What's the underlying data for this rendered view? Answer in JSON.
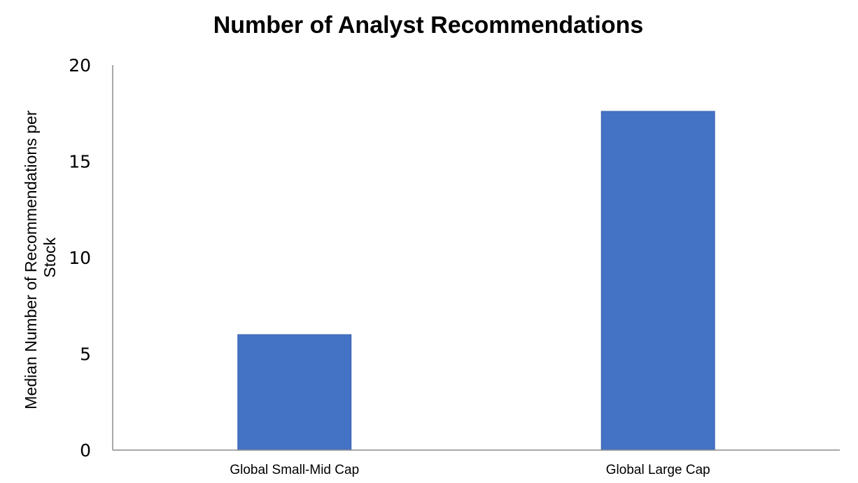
{
  "chart_data": {
    "type": "bar",
    "title": "Number of Analyst Recommendations",
    "xlabel": "",
    "ylabel_lines": [
      "Median Number of Recommendations per",
      "Stock"
    ],
    "categories": [
      "Global Small-Mid Cap",
      "Global Large Cap"
    ],
    "values": [
      6,
      17.6
    ],
    "ylim": [
      0,
      20
    ],
    "yticks": [
      0,
      5,
      10,
      15,
      20
    ],
    "grid": false,
    "bar_color": "#4472C4",
    "bar_edge_color": "#3A64B0"
  }
}
